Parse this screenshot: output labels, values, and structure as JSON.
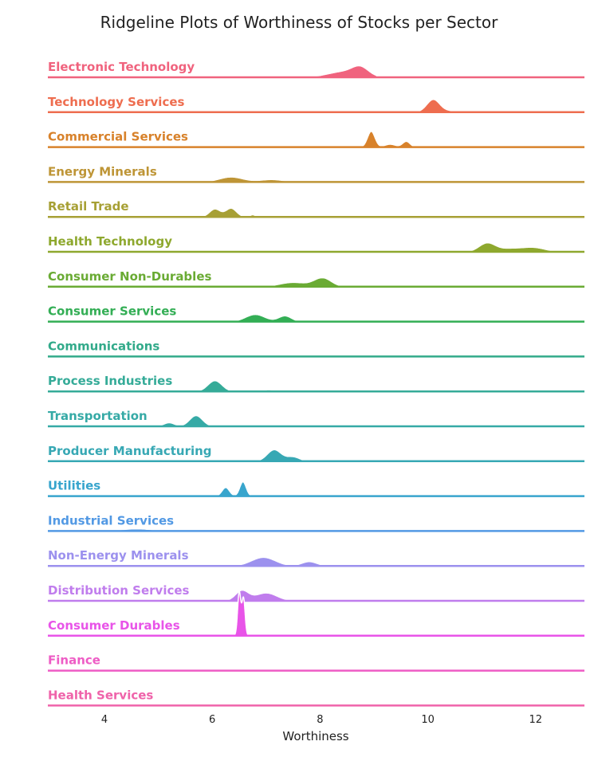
{
  "chart_data": {
    "type": "ridgeline",
    "title": "Ridgeline Plots of Worthiness of Stocks per Sector",
    "xlabel": "Worthiness",
    "ylabel": "",
    "xlim": [
      3,
      13
    ],
    "xticks": [
      4,
      6,
      8,
      10,
      12
    ],
    "grid": false,
    "rows": [
      {
        "name": "Electronic Technology",
        "color": "#f0637e",
        "peaks": [
          {
            "x": 8.45,
            "w": 0.3,
            "a": 0.4
          },
          {
            "x": 8.75,
            "w": 0.15,
            "a": 0.55
          }
        ],
        "range": [
          7.9,
          9.05
        ]
      },
      {
        "name": "Technology Services",
        "color": "#ee6d4f",
        "peaks": [
          {
            "x": 10.1,
            "w": 0.12,
            "a": 0.85
          },
          {
            "x": 10.5,
            "w": 0.3,
            "a": 0.1
          }
        ],
        "range": [
          9.65,
          11.45
        ]
      },
      {
        "name": "Commercial Services",
        "color": "#d8822b",
        "peaks": [
          {
            "x": 8.95,
            "w": 0.07,
            "a": 1.1
          },
          {
            "x": 9.3,
            "w": 0.1,
            "a": 0.2
          },
          {
            "x": 9.6,
            "w": 0.07,
            "a": 0.4
          }
        ],
        "range": [
          8.65,
          9.75
        ]
      },
      {
        "name": "Energy Minerals",
        "color": "#be9536",
        "peaks": [
          {
            "x": 6.35,
            "w": 0.22,
            "a": 0.35
          },
          {
            "x": 7.1,
            "w": 0.22,
            "a": 0.17
          }
        ],
        "range": [
          6.0,
          7.6
        ]
      },
      {
        "name": "Retail Trade",
        "color": "#a7a035",
        "peaks": [
          {
            "x": 6.05,
            "w": 0.1,
            "a": 0.55
          },
          {
            "x": 6.35,
            "w": 0.1,
            "a": 0.6
          },
          {
            "x": 6.75,
            "w": 0.05,
            "a": 0.15
          }
        ],
        "range": [
          5.75,
          6.85
        ]
      },
      {
        "name": "Health Technology",
        "color": "#8ea82e",
        "peaks": [
          {
            "x": 11.1,
            "w": 0.15,
            "a": 0.6
          },
          {
            "x": 11.5,
            "w": 0.2,
            "a": 0.2
          },
          {
            "x": 11.95,
            "w": 0.22,
            "a": 0.3
          }
        ],
        "range": [
          10.6,
          12.4
        ]
      },
      {
        "name": "Consumer Non-Durables",
        "color": "#6aab34",
        "peaks": [
          {
            "x": 7.5,
            "w": 0.25,
            "a": 0.3
          },
          {
            "x": 8.05,
            "w": 0.16,
            "a": 0.6
          }
        ],
        "range": [
          6.8,
          10.0
        ]
      },
      {
        "name": "Consumer Services",
        "color": "#33ae55",
        "peaks": [
          {
            "x": 6.8,
            "w": 0.18,
            "a": 0.5
          },
          {
            "x": 7.35,
            "w": 0.12,
            "a": 0.4
          }
        ],
        "range": [
          6.35,
          7.95
        ]
      },
      {
        "name": "Communications",
        "color": "#32aa8a",
        "peaks": [],
        "range": [
          3,
          13
        ]
      },
      {
        "name": "Process Industries",
        "color": "#35ab98",
        "peaks": [
          {
            "x": 6.05,
            "w": 0.13,
            "a": 0.75
          },
          {
            "x": 7.05,
            "w": 0.1,
            "a": 0.12
          }
        ],
        "range": [
          5.3,
          7.5
        ]
      },
      {
        "name": "Transportation",
        "color": "#36aaa6",
        "peaks": [
          {
            "x": 5.2,
            "w": 0.1,
            "a": 0.25
          },
          {
            "x": 5.7,
            "w": 0.12,
            "a": 0.75
          }
        ],
        "range": [
          5.0,
          6.0
        ]
      },
      {
        "name": "Producer Manufacturing",
        "color": "#37a8b4",
        "peaks": [
          {
            "x": 7.15,
            "w": 0.13,
            "a": 0.8
          },
          {
            "x": 7.5,
            "w": 0.12,
            "a": 0.3
          }
        ],
        "range": [
          6.75,
          7.75
        ]
      },
      {
        "name": "Utilities",
        "color": "#38a5cd",
        "peaks": [
          {
            "x": 6.25,
            "w": 0.07,
            "a": 0.6
          },
          {
            "x": 6.57,
            "w": 0.06,
            "a": 1.0
          }
        ],
        "range": [
          5.85,
          6.75
        ]
      },
      {
        "name": "Industrial Services",
        "color": "#5299e4",
        "peaks": [
          {
            "x": 4.6,
            "w": 0.3,
            "a": 0.15
          }
        ],
        "range": [
          3.45,
          7.55
        ]
      },
      {
        "name": "Non-Energy Minerals",
        "color": "#9c91ee",
        "peaks": [
          {
            "x": 6.95,
            "w": 0.22,
            "a": 0.6
          },
          {
            "x": 7.8,
            "w": 0.14,
            "a": 0.3
          }
        ],
        "range": [
          6.5,
          8.3
        ]
      },
      {
        "name": "Distribution Services",
        "color": "#c07ded",
        "peaks": [
          {
            "x": 6.55,
            "w": 0.12,
            "a": 0.7
          },
          {
            "x": 7.0,
            "w": 0.2,
            "a": 0.55
          }
        ],
        "range": [
          5.75,
          7.6
        ]
      },
      {
        "name": "Consumer Durables",
        "color": "#e854e8",
        "peaks": [
          {
            "x": 6.5,
            "w": 0.03,
            "a": 3.0
          },
          {
            "x": 6.58,
            "w": 0.03,
            "a": 2.6
          }
        ],
        "range": [
          6.35,
          6.7
        ]
      },
      {
        "name": "Finance",
        "color": "#ee5cc5",
        "peaks": [],
        "range": [
          3,
          13
        ]
      },
      {
        "name": "Health Services",
        "color": "#ef63aa",
        "peaks": [],
        "range": [
          3,
          13
        ]
      }
    ]
  }
}
